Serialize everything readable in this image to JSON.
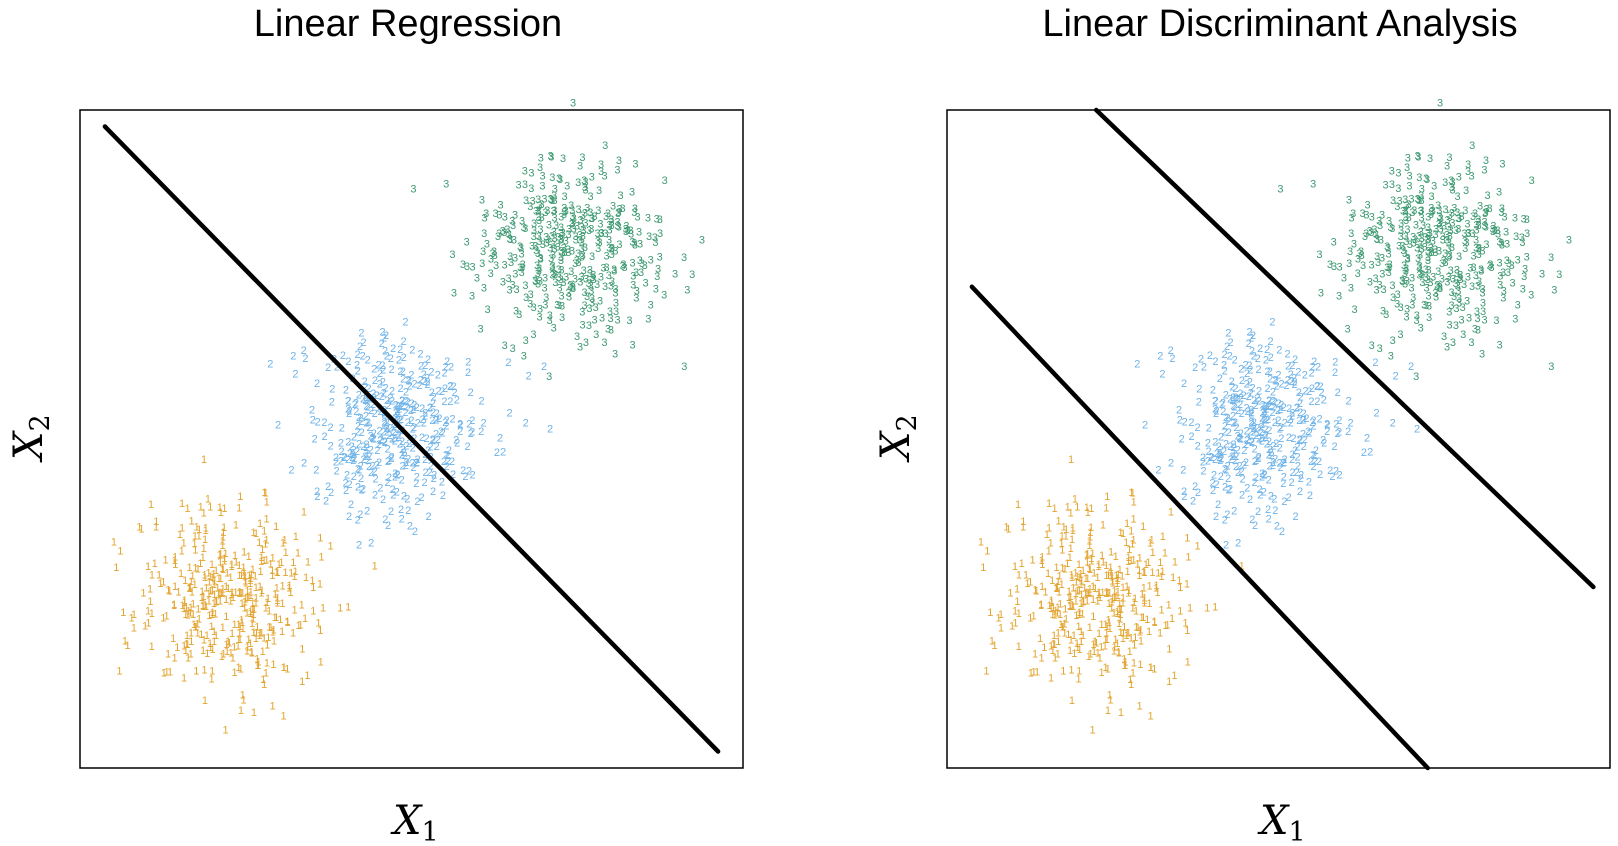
{
  "figure": {
    "colors": {
      "class1": "#E3A531",
      "class2": "#6FB3E8",
      "class3": "#3E9A72",
      "boundary": "#000000"
    }
  },
  "chart_data": [
    {
      "type": "scatter",
      "title": "Linear Regression",
      "xlabel": "X",
      "xlabel_sub": "1",
      "ylabel": "X",
      "ylabel_sub": "2",
      "xlim": [
        -4,
        4
      ],
      "ylim": [
        -4,
        4
      ],
      "ticks_shown": false,
      "grid": false,
      "series": [
        {
          "marker": "1",
          "color": "#E3A531",
          "center": [
            -2.2,
            -1.9
          ],
          "spread": 0.55,
          "n": 400
        },
        {
          "marker": "2",
          "color": "#6FB3E8",
          "center": [
            -0.15,
            0.15
          ],
          "spread": 0.55,
          "n": 400
        },
        {
          "marker": "3",
          "color": "#3E9A72",
          "center": [
            1.9,
            2.3
          ],
          "spread": 0.55,
          "n": 400
        }
      ],
      "lines": [
        {
          "x": [
            -3.7,
            3.7
          ],
          "y": [
            3.8,
            -3.8
          ]
        }
      ]
    },
    {
      "type": "scatter",
      "title": "Linear Discriminant Analysis",
      "xlabel": "X",
      "xlabel_sub": "1",
      "ylabel": "X",
      "ylabel_sub": "2",
      "xlim": [
        -4,
        4
      ],
      "ylim": [
        -4,
        4
      ],
      "ticks_shown": false,
      "grid": false,
      "series": [
        {
          "marker": "1",
          "color": "#E3A531",
          "center": [
            -2.2,
            -1.9
          ],
          "spread": 0.55,
          "n": 400
        },
        {
          "marker": "2",
          "color": "#6FB3E8",
          "center": [
            -0.15,
            0.15
          ],
          "spread": 0.55,
          "n": 400
        },
        {
          "marker": "3",
          "color": "#3E9A72",
          "center": [
            1.9,
            2.3
          ],
          "spread": 0.55,
          "n": 400
        }
      ],
      "lines": [
        {
          "x": [
            -2.2,
            3.8
          ],
          "y": [
            4.0,
            -1.8
          ]
        },
        {
          "x": [
            -3.7,
            1.8
          ],
          "y": [
            1.85,
            -4.0
          ]
        }
      ]
    }
  ]
}
